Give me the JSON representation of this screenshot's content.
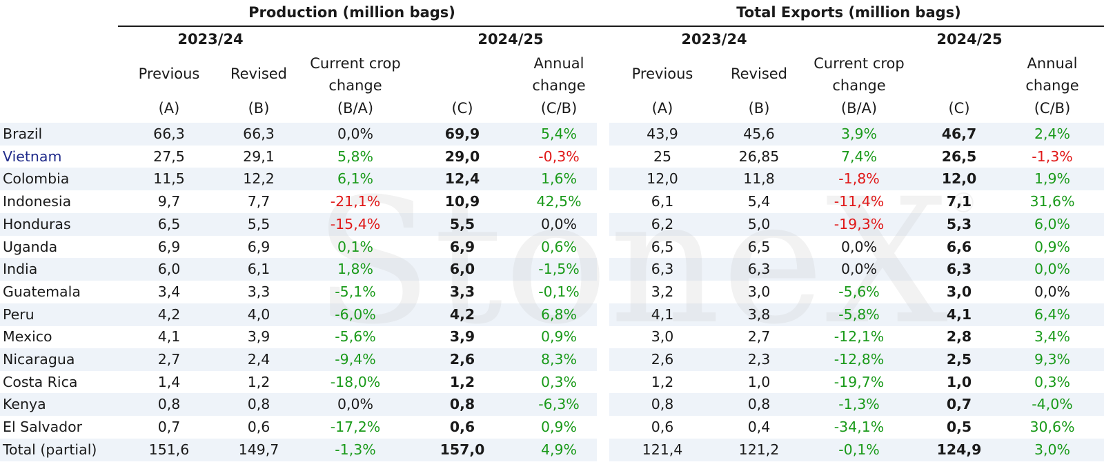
{
  "headers": {
    "production": "Production  (million bags)",
    "exports": "Total Exports (million bags)",
    "year_a": "2023/24",
    "year_b": "2024/25",
    "previous": "Previous",
    "revised": "Revised",
    "current_crop": "Current crop",
    "change": "change",
    "annual": "Annual",
    "label_a": "(A)",
    "label_b": "(B)",
    "label_ba": "(B/A)",
    "label_c": "(C)",
    "label_cb": "(C/B)"
  },
  "watermark": "StoneX",
  "watermark_mark": "®",
  "rows": [
    {
      "country": "Brazil",
      "p_prev": "66,3",
      "p_rev": "66,3",
      "p_chg": "0,0%",
      "p_chg_s": "neu",
      "p_c": "69,9",
      "p_ann": "5,4%",
      "p_ann_s": "pos",
      "e_prev": "43,9",
      "e_rev": "45,6",
      "e_chg": "3,9%",
      "e_chg_s": "pos",
      "e_c": "46,7",
      "e_ann": "2,4%",
      "e_ann_s": "pos",
      "hl": true
    },
    {
      "country": "Vietnam",
      "p_prev": "27,5",
      "p_rev": "29,1",
      "p_chg": "5,8%",
      "p_chg_s": "pos",
      "p_c": "29,0",
      "p_ann": "-0,3%",
      "p_ann_s": "neg",
      "e_prev": "25",
      "e_rev": "26,85",
      "e_chg": "7,4%",
      "e_chg_s": "pos",
      "e_c": "26,5",
      "e_ann": "-1,3%",
      "e_ann_s": "neg",
      "hl": false,
      "blue": true
    },
    {
      "country": "Colombia",
      "p_prev": "11,5",
      "p_rev": "12,2",
      "p_chg": "6,1%",
      "p_chg_s": "pos",
      "p_c": "12,4",
      "p_ann": "1,6%",
      "p_ann_s": "pos",
      "e_prev": "12,0",
      "e_rev": "11,8",
      "e_chg": "-1,8%",
      "e_chg_s": "neg",
      "e_c": "12,0",
      "e_ann": "1,9%",
      "e_ann_s": "pos",
      "hl": true
    },
    {
      "country": "Indonesia",
      "p_prev": "9,7",
      "p_rev": "7,7",
      "p_chg": "-21,1%",
      "p_chg_s": "neg",
      "p_c": "10,9",
      "p_ann": "42,5%",
      "p_ann_s": "pos",
      "e_prev": "6,1",
      "e_rev": "5,4",
      "e_chg": "-11,4%",
      "e_chg_s": "neg",
      "e_c": "7,1",
      "e_ann": "31,6%",
      "e_ann_s": "pos",
      "hl": false
    },
    {
      "country": "Honduras",
      "p_prev": "6,5",
      "p_rev": "5,5",
      "p_chg": "-15,4%",
      "p_chg_s": "neg",
      "p_c": "5,5",
      "p_ann": "0,0%",
      "p_ann_s": "neu",
      "e_prev": "6,2",
      "e_rev": "5,0",
      "e_chg": "-19,3%",
      "e_chg_s": "neg",
      "e_c": "5,3",
      "e_ann": "6,0%",
      "e_ann_s": "pos",
      "hl": true
    },
    {
      "country": "Uganda",
      "p_prev": "6,9",
      "p_rev": "6,9",
      "p_chg": "0,1%",
      "p_chg_s": "pos",
      "p_c": "6,9",
      "p_ann": "0,6%",
      "p_ann_s": "pos",
      "e_prev": "6,5",
      "e_rev": "6,5",
      "e_chg": "0,0%",
      "e_chg_s": "neu",
      "e_c": "6,6",
      "e_ann": "0,9%",
      "e_ann_s": "pos",
      "hl": false
    },
    {
      "country": "India",
      "p_prev": "6,0",
      "p_rev": "6,1",
      "p_chg": "1,8%",
      "p_chg_s": "pos",
      "p_c": "6,0",
      "p_ann": "-1,5%",
      "p_ann_s": "pos",
      "e_prev": "6,3",
      "e_rev": "6,3",
      "e_chg": "0,0%",
      "e_chg_s": "neu",
      "e_c": "6,3",
      "e_ann": "0,0%",
      "e_ann_s": "pos",
      "hl": true
    },
    {
      "country": "Guatemala",
      "p_prev": "3,4",
      "p_rev": "3,3",
      "p_chg": "-5,1%",
      "p_chg_s": "pos",
      "p_c": "3,3",
      "p_ann": "-0,1%",
      "p_ann_s": "pos",
      "e_prev": "3,2",
      "e_rev": "3,0",
      "e_chg": "-5,6%",
      "e_chg_s": "pos",
      "e_c": "3,0",
      "e_ann": "0,0%",
      "e_ann_s": "neu",
      "hl": false
    },
    {
      "country": "Peru",
      "p_prev": "4,2",
      "p_rev": "4,0",
      "p_chg": "-6,0%",
      "p_chg_s": "pos",
      "p_c": "4,2",
      "p_ann": "6,8%",
      "p_ann_s": "pos",
      "e_prev": "4,1",
      "e_rev": "3,8",
      "e_chg": "-5,8%",
      "e_chg_s": "pos",
      "e_c": "4,1",
      "e_ann": "6,4%",
      "e_ann_s": "pos",
      "hl": true
    },
    {
      "country": "Mexico",
      "p_prev": "4,1",
      "p_rev": "3,9",
      "p_chg": "-5,6%",
      "p_chg_s": "pos",
      "p_c": "3,9",
      "p_ann": "0,9%",
      "p_ann_s": "pos",
      "e_prev": "3,0",
      "e_rev": "2,7",
      "e_chg": "-12,1%",
      "e_chg_s": "pos",
      "e_c": "2,8",
      "e_ann": "3,4%",
      "e_ann_s": "pos",
      "hl": false
    },
    {
      "country": "Nicaragua",
      "p_prev": "2,7",
      "p_rev": "2,4",
      "p_chg": "-9,4%",
      "p_chg_s": "pos",
      "p_c": "2,6",
      "p_ann": "8,3%",
      "p_ann_s": "pos",
      "e_prev": "2,6",
      "e_rev": "2,3",
      "e_chg": "-12,8%",
      "e_chg_s": "pos",
      "e_c": "2,5",
      "e_ann": "9,3%",
      "e_ann_s": "pos",
      "hl": true
    },
    {
      "country": "Costa Rica",
      "p_prev": "1,4",
      "p_rev": "1,2",
      "p_chg": "-18,0%",
      "p_chg_s": "pos",
      "p_c": "1,2",
      "p_ann": "0,3%",
      "p_ann_s": "pos",
      "e_prev": "1,2",
      "e_rev": "1,0",
      "e_chg": "-19,7%",
      "e_chg_s": "pos",
      "e_c": "1,0",
      "e_ann": "0,3%",
      "e_ann_s": "pos",
      "hl": false
    },
    {
      "country": "Kenya",
      "p_prev": "0,8",
      "p_rev": "0,8",
      "p_chg": "0,0%",
      "p_chg_s": "neu",
      "p_c": "0,8",
      "p_ann": "-6,3%",
      "p_ann_s": "pos",
      "e_prev": "0,8",
      "e_rev": "0,8",
      "e_chg": "-1,3%",
      "e_chg_s": "pos",
      "e_c": "0,7",
      "e_ann": "-4,0%",
      "e_ann_s": "pos",
      "hl": true
    },
    {
      "country": "El Salvador",
      "p_prev": "0,7",
      "p_rev": "0,6",
      "p_chg": "-17,2%",
      "p_chg_s": "pos",
      "p_c": "0,6",
      "p_ann": "0,9%",
      "p_ann_s": "pos",
      "e_prev": "0,6",
      "e_rev": "0,4",
      "e_chg": "-34,1%",
      "e_chg_s": "pos",
      "e_c": "0,5",
      "e_ann": "30,6%",
      "e_ann_s": "pos",
      "hl": false
    },
    {
      "country": "Total (partial)",
      "p_prev": "151,6",
      "p_rev": "149,7",
      "p_chg": "-1,3%",
      "p_chg_s": "pos",
      "p_c": "157,0",
      "p_ann": "4,9%",
      "p_ann_s": "pos",
      "e_prev": "121,4",
      "e_rev": "121,2",
      "e_chg": "-0,1%",
      "e_chg_s": "pos",
      "e_c": "124,9",
      "e_ann": "3,0%",
      "e_ann_s": "pos",
      "hl": true
    }
  ]
}
